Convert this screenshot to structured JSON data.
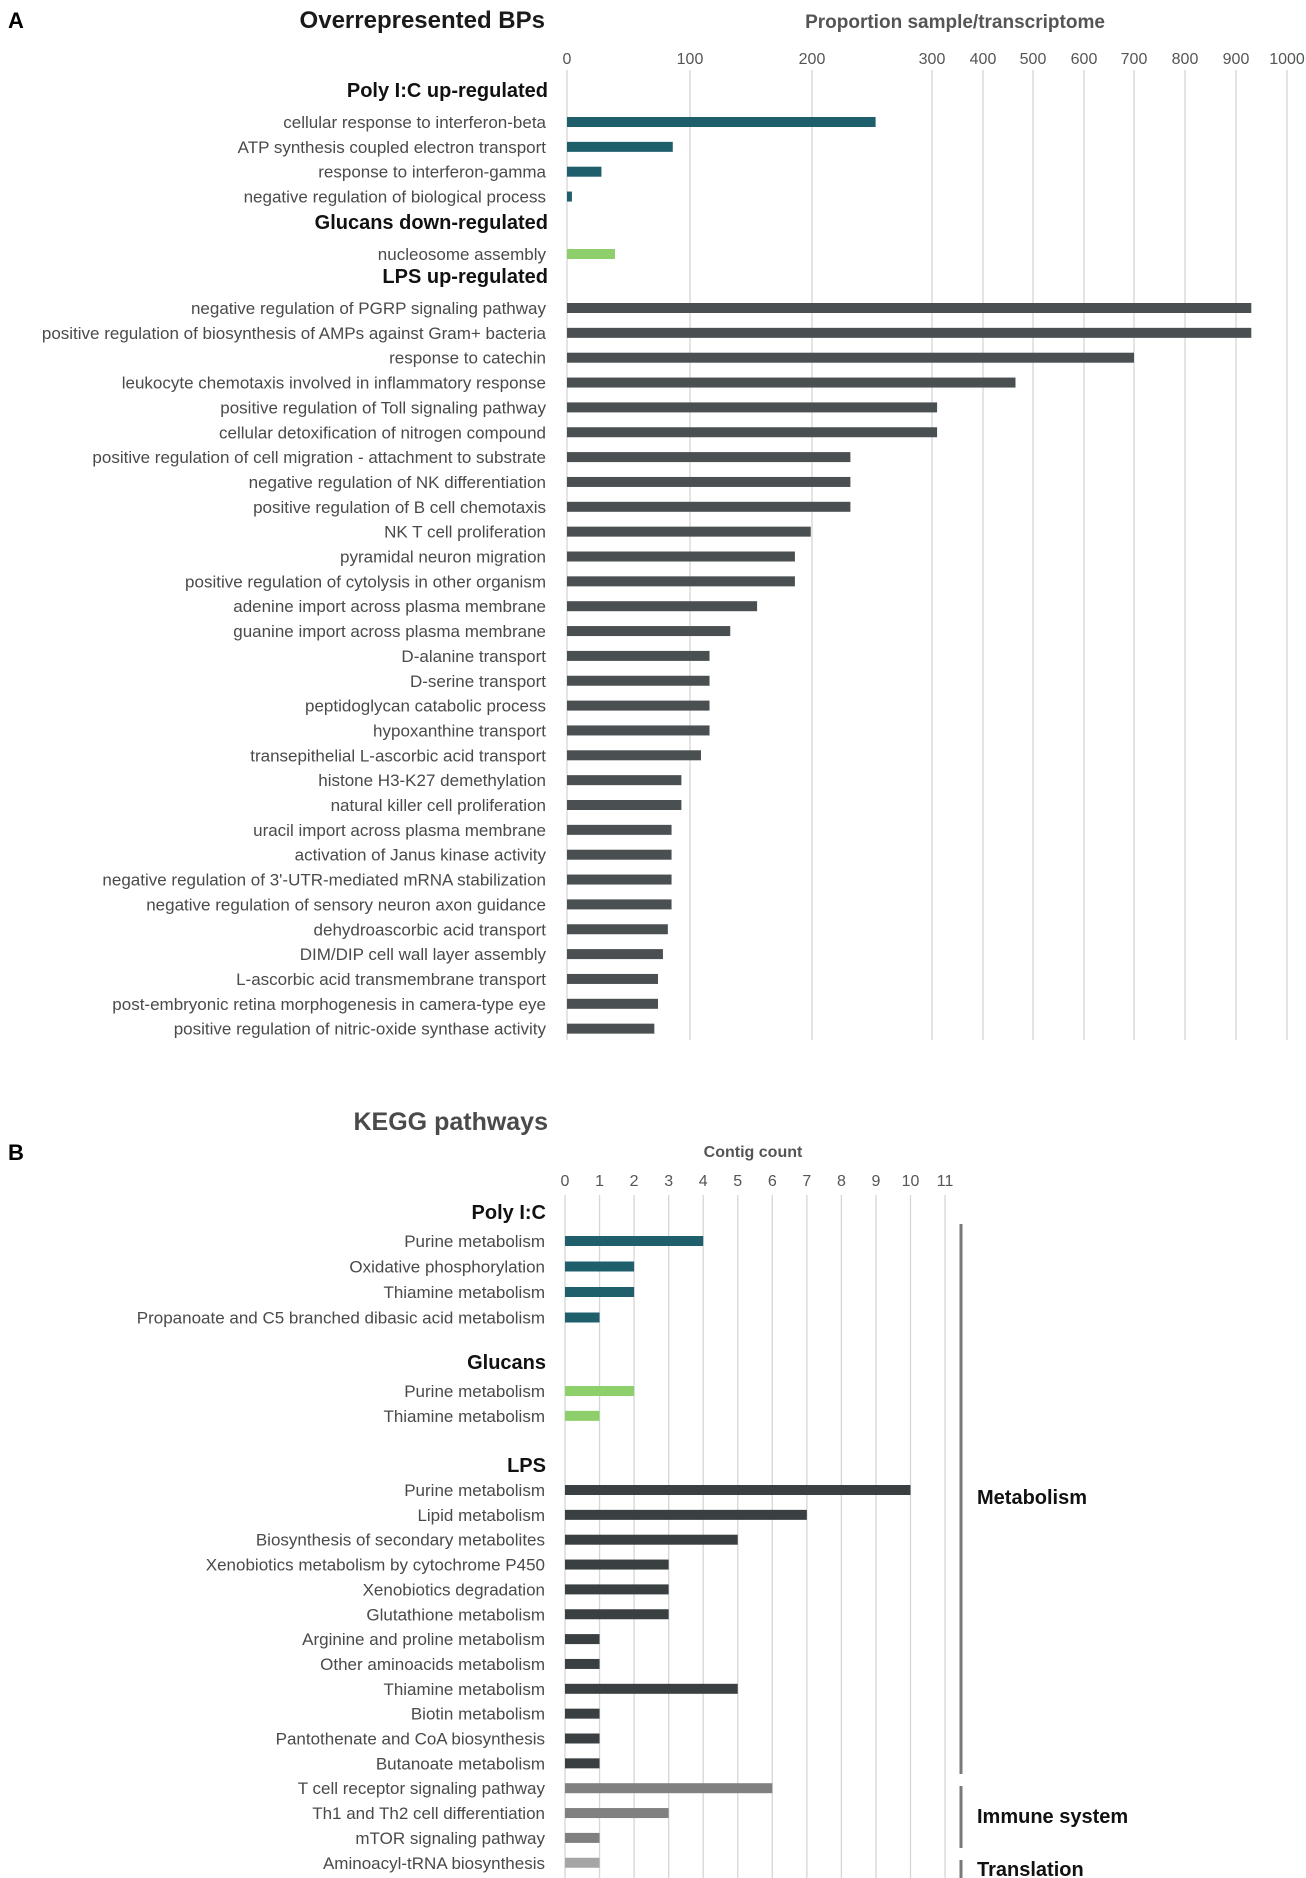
{
  "panel_labels": {
    "a": "A",
    "b": "B"
  },
  "colors": {
    "poly": "#1f5f6c",
    "glucans": "#8dcf6a",
    "lps": "#4a5052",
    "lps_b": "#3a3f42",
    "immune": "#808080",
    "translation": "#a5a5a5",
    "category_line": "#7a7a7a"
  },
  "chart_data": [
    {
      "type": "bar",
      "orientation": "horizontal",
      "title": "Overrepresented BPs",
      "xlabel": "Proportion sample/transcriptome",
      "xticks": [
        "0",
        "100",
        "200",
        "300",
        "400",
        "500",
        "600",
        "700",
        "800",
        "900",
        "1000"
      ],
      "xscale": "non-uniform (compressed above 300)",
      "groups": [
        {
          "name": "Poly I:C up-regulated",
          "color_key": "poly",
          "items": [
            {
              "label": "cellular response to interferon-beta",
              "value": 253
            },
            {
              "label": "ATP synthesis coupled electron transport",
              "value": 86
            },
            {
              "label": "response to interferon-gamma",
              "value": 28
            },
            {
              "label": "negative regulation of biological process",
              "value": 4
            }
          ]
        },
        {
          "name": "Glucans down-regulated",
          "color_key": "glucans",
          "items": [
            {
              "label": "nucleosome assembly",
              "value": 39
            }
          ]
        },
        {
          "name": "LPS up-regulated",
          "color_key": "lps",
          "items": [
            {
              "label": "negative regulation of PGRP signaling pathway",
              "value": 930
            },
            {
              "label": "positive regulation of biosynthesis of AMPs against Gram+ bacteria",
              "value": 930
            },
            {
              "label": "response to catechin",
              "value": 700
            },
            {
              "label": "leukocyte chemotaxis involved in inflammatory response",
              "value": 465
            },
            {
              "label": "positive regulation of Toll signaling pathway",
              "value": 310
            },
            {
              "label": "cellular detoxification of nitrogen compound",
              "value": 310
            },
            {
              "label": "positive regulation of cell migration - attachment to substrate",
              "value": 232
            },
            {
              "label": "negative regulation of NK differentiation",
              "value": 232
            },
            {
              "label": "positive regulation of B cell chemotaxis",
              "value": 232
            },
            {
              "label": "NK T cell proliferation",
              "value": 199
            },
            {
              "label": "pyramidal neuron migration",
              "value": 186
            },
            {
              "label": "positive regulation of cytolysis in other organism",
              "value": 186
            },
            {
              "label": "adenine import across plasma membrane",
              "value": 155
            },
            {
              "label": "guanine import across plasma membrane",
              "value": 133
            },
            {
              "label": "D-alanine transport",
              "value": 116
            },
            {
              "label": "D-serine transport",
              "value": 116
            },
            {
              "label": "peptidoglycan catabolic process",
              "value": 116
            },
            {
              "label": "hypoxanthine transport",
              "value": 116
            },
            {
              "label": "transepithelial L-ascorbic acid transport",
              "value": 109
            },
            {
              "label": "histone H3-K27 demethylation",
              "value": 93
            },
            {
              "label": "natural killer cell proliferation",
              "value": 93
            },
            {
              "label": "uracil import across plasma membrane",
              "value": 85
            },
            {
              "label": "activation of Janus kinase activity",
              "value": 85
            },
            {
              "label": "negative regulation of 3'-UTR-mediated mRNA stabilization",
              "value": 85
            },
            {
              "label": "negative regulation of sensory neuron axon guidance",
              "value": 85
            },
            {
              "label": "dehydroascorbic acid transport",
              "value": 82
            },
            {
              "label": "DIM/DIP cell wall layer assembly",
              "value": 78
            },
            {
              "label": "L-ascorbic acid transmembrane transport",
              "value": 74
            },
            {
              "label": "post-embryonic retina morphogenesis in camera-type eye",
              "value": 74
            },
            {
              "label": "positive regulation of nitric-oxide synthase activity",
              "value": 71
            }
          ]
        }
      ]
    },
    {
      "type": "bar",
      "orientation": "horizontal",
      "title": "KEGG pathways",
      "xlabel": "Contig count",
      "xticks": [
        "0",
        "1",
        "2",
        "3",
        "4",
        "5",
        "6",
        "7",
        "8",
        "9",
        "10",
        "11"
      ],
      "xlim": [
        0,
        11
      ],
      "groups": [
        {
          "name": "Poly I:C",
          "color_key": "poly",
          "items": [
            {
              "label": "Purine metabolism",
              "value": 4
            },
            {
              "label": "Oxidative phosphorylation",
              "value": 2
            },
            {
              "label": "Thiamine metabolism",
              "value": 2
            },
            {
              "label": "Propanoate and C5 branched dibasic acid metabolism",
              "value": 1
            }
          ]
        },
        {
          "name": "Glucans",
          "color_key": "glucans",
          "items": [
            {
              "label": "Purine metabolism",
              "value": 2
            },
            {
              "label": "Thiamine metabolism",
              "value": 1
            }
          ]
        },
        {
          "name": "LPS",
          "color_key": "lps_b",
          "items": [
            {
              "label": "Purine metabolism",
              "value": 10
            },
            {
              "label": "Lipid metabolism",
              "value": 7
            },
            {
              "label": "Biosynthesis of secondary metabolites",
              "value": 5
            },
            {
              "label": "Xenobiotics metabolism  by cytochrome P450",
              "value": 3
            },
            {
              "label": "Xenobiotics degradation",
              "value": 3
            },
            {
              "label": "Glutathione metabolism",
              "value": 3
            },
            {
              "label": "Arginine and proline metabolism",
              "value": 1
            },
            {
              "label": "Other aminoacids metabolism",
              "value": 1
            },
            {
              "label": "Thiamine metabolism",
              "value": 5
            },
            {
              "label": "Biotin metabolism",
              "value": 1
            },
            {
              "label": "Pantothenate and CoA biosynthesis",
              "value": 1
            },
            {
              "label": "Butanoate metabolism",
              "value": 1
            },
            {
              "label": "T cell receptor signaling pathway",
              "value": 6,
              "color_key": "immune"
            },
            {
              "label": "Th1 and Th2 cell differentiation",
              "value": 3,
              "color_key": "immune"
            },
            {
              "label": "mTOR signaling pathway",
              "value": 1,
              "color_key": "immune"
            },
            {
              "label": "Aminoacyl-tRNA biosynthesis",
              "value": 1,
              "color_key": "translation"
            }
          ]
        }
      ],
      "categories": [
        {
          "name": "Metabolism",
          "from": "Purine metabolism",
          "to": "Butanoate metabolism"
        },
        {
          "name": "Immune system",
          "from": "T cell receptor signaling pathway",
          "to": "mTOR signaling pathway"
        },
        {
          "name": "Translation",
          "from": "Aminoacyl-tRNA biosynthesis",
          "to": "Aminoacyl-tRNA biosynthesis"
        }
      ]
    }
  ]
}
